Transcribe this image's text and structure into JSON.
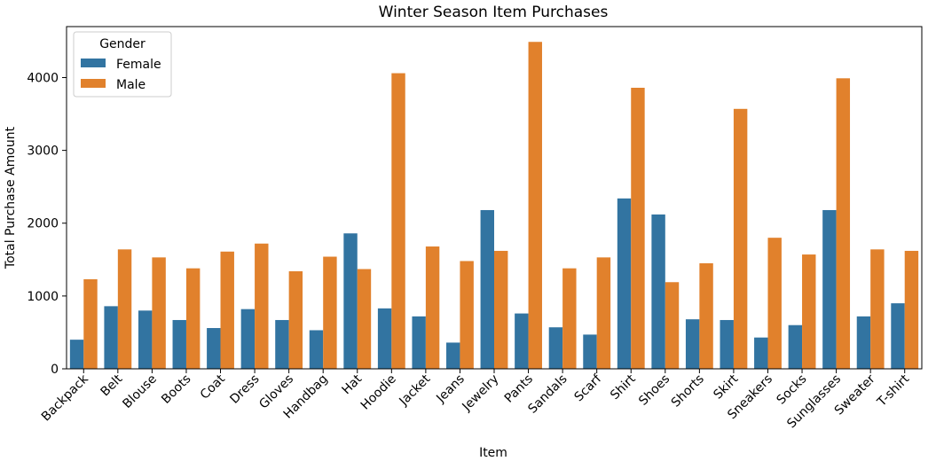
{
  "chart_data": {
    "type": "bar",
    "title": "Winter Season Item Purchases",
    "xlabel": "Item",
    "ylabel": "Total Purchase Amount",
    "ylim": [
      0,
      4700
    ],
    "yticks": [
      0,
      1000,
      2000,
      3000,
      4000
    ],
    "grid": false,
    "legend": {
      "title": "Gender",
      "placement": "top-left"
    },
    "categories": [
      "Backpack",
      "Belt",
      "Blouse",
      "Boots",
      "Coat",
      "Dress",
      "Gloves",
      "Handbag",
      "Hat",
      "Hoodie",
      "Jacket",
      "Jeans",
      "Jewelry",
      "Pants",
      "Sandals",
      "Scarf",
      "Shirt",
      "Shoes",
      "Shorts",
      "Skirt",
      "Sneakers",
      "Socks",
      "Sunglasses",
      "Sweater",
      "T-shirt"
    ],
    "series": [
      {
        "name": "Female",
        "color": "#3274a1",
        "values": [
          400,
          860,
          800,
          670,
          560,
          820,
          670,
          530,
          1860,
          830,
          720,
          360,
          2180,
          760,
          570,
          470,
          2340,
          2120,
          680,
          670,
          430,
          600,
          2180,
          720,
          900
        ]
      },
      {
        "name": "Male",
        "color": "#e1812c",
        "values": [
          1230,
          1640,
          1530,
          1380,
          1610,
          1720,
          1340,
          1540,
          1370,
          4060,
          1680,
          1480,
          1620,
          4490,
          1380,
          1530,
          3860,
          1190,
          1450,
          3570,
          1800,
          1570,
          3990,
          1640,
          1620
        ]
      }
    ]
  }
}
